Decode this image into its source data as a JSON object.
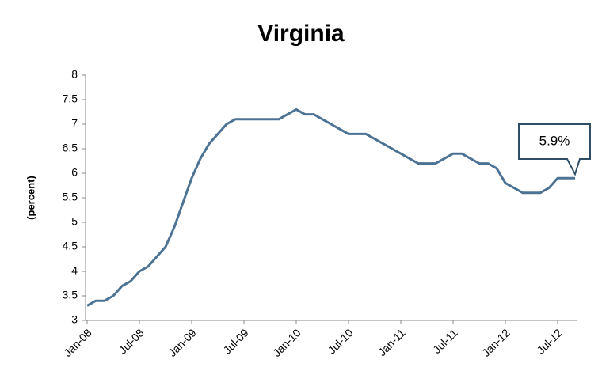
{
  "chart_data": {
    "type": "line",
    "title": "Virginia",
    "y_label": "(percent)",
    "annotation": "5.9%",
    "categories": [
      "Jan-08",
      null,
      null,
      null,
      null,
      null,
      "Jul-08",
      null,
      null,
      null,
      null,
      null,
      "Jan-09",
      null,
      null,
      null,
      null,
      null,
      "Jul-09",
      null,
      null,
      null,
      null,
      null,
      "Jan-10",
      null,
      null,
      null,
      null,
      null,
      "Jul-10",
      null,
      null,
      null,
      null,
      null,
      "Jan-11",
      null,
      null,
      null,
      null,
      null,
      "Jul-11",
      null,
      null,
      null,
      null,
      null,
      "Jan-12",
      null,
      null,
      null,
      null,
      null,
      "Jul-12",
      null,
      null
    ],
    "series": [
      {
        "name": "Virginia",
        "color": "#4d7394",
        "values": [
          3.3,
          3.4,
          3.4,
          3.5,
          3.7,
          3.8,
          4.0,
          4.1,
          4.3,
          4.5,
          4.9,
          5.4,
          5.9,
          6.3,
          6.6,
          6.8,
          7.0,
          7.1,
          7.1,
          7.1,
          7.1,
          7.1,
          7.1,
          7.2,
          7.3,
          7.2,
          7.2,
          7.1,
          7.0,
          6.9,
          6.8,
          6.8,
          6.8,
          6.7,
          6.6,
          6.5,
          6.4,
          6.3,
          6.2,
          6.2,
          6.2,
          6.3,
          6.4,
          6.4,
          6.3,
          6.2,
          6.2,
          6.1,
          5.8,
          5.7,
          5.6,
          5.6,
          5.6,
          5.7,
          5.9,
          5.9,
          5.9
        ]
      }
    ],
    "ylim": [
      3,
      8
    ],
    "yticks": [
      3,
      3.5,
      4,
      4.5,
      5,
      5.5,
      6,
      6.5,
      7,
      7.5,
      8
    ],
    "grid": false
  }
}
